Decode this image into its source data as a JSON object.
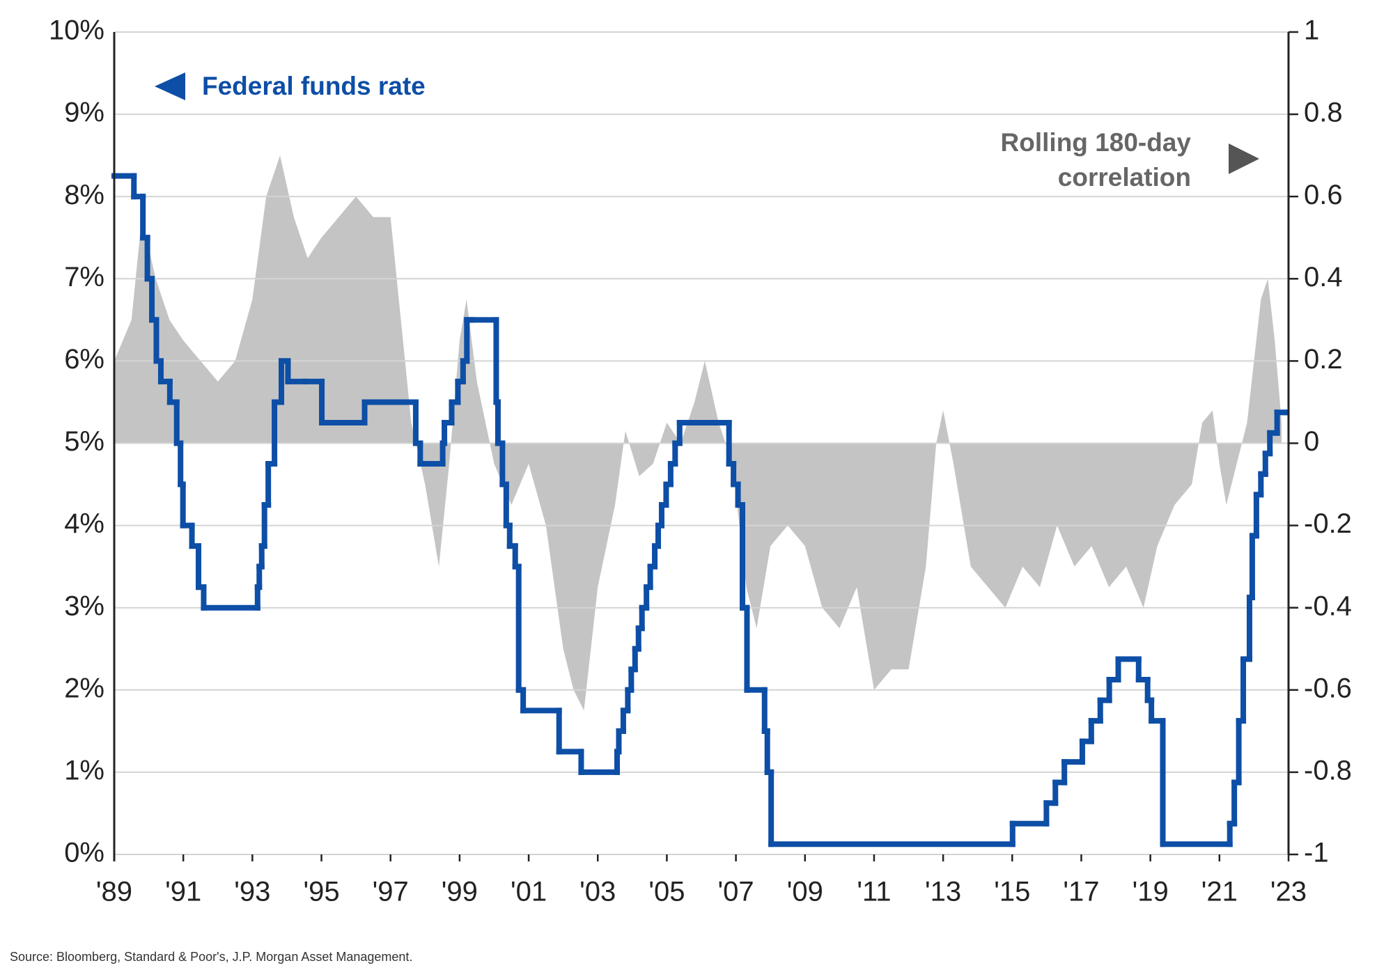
{
  "chart_data": {
    "type": "line",
    "source": "Source: Bloomberg, Standard & Poor's, J.P. Morgan Asset Management.",
    "xlim": [
      1989,
      2023
    ],
    "xticks": [
      {
        "value": 1989,
        "label": "'89"
      },
      {
        "value": 1991,
        "label": "'91"
      },
      {
        "value": 1993,
        "label": "'93"
      },
      {
        "value": 1995,
        "label": "'95"
      },
      {
        "value": 1997,
        "label": "'97"
      },
      {
        "value": 1999,
        "label": "'99"
      },
      {
        "value": 2001,
        "label": "'01"
      },
      {
        "value": 2003,
        "label": "'03"
      },
      {
        "value": 2005,
        "label": "'05"
      },
      {
        "value": 2007,
        "label": "'07"
      },
      {
        "value": 2009,
        "label": "'09"
      },
      {
        "value": 2011,
        "label": "'11"
      },
      {
        "value": 2013,
        "label": "'13"
      },
      {
        "value": 2015,
        "label": "'15"
      },
      {
        "value": 2017,
        "label": "'17"
      },
      {
        "value": 2019,
        "label": "'19"
      },
      {
        "value": 2021,
        "label": "'21"
      },
      {
        "value": 2023,
        "label": "'23"
      }
    ],
    "ylim": [
      0,
      10
    ],
    "yticks": [
      {
        "value": 0,
        "label": "0%"
      },
      {
        "value": 1,
        "label": "1%"
      },
      {
        "value": 2,
        "label": "2%"
      },
      {
        "value": 3,
        "label": "3%"
      },
      {
        "value": 4,
        "label": "4%"
      },
      {
        "value": 5,
        "label": "5%"
      },
      {
        "value": 6,
        "label": "6%"
      },
      {
        "value": 7,
        "label": "7%"
      },
      {
        "value": 8,
        "label": "8%"
      },
      {
        "value": 9,
        "label": "9%"
      },
      {
        "value": 10,
        "label": "10%"
      }
    ],
    "y2lim": [
      -1,
      1
    ],
    "y2ticks": [
      -1,
      -0.8,
      -0.6,
      -0.4,
      -0.2,
      0,
      0.2,
      0.4,
      0.6,
      0.8,
      1
    ],
    "grid": true,
    "series": [
      {
        "name": "Federal funds rate",
        "style": "step",
        "color": "#0d4ea6",
        "x": [
          1989.0,
          1989.57,
          1989.83,
          1989.96,
          1990.09,
          1990.22,
          1990.35,
          1990.61,
          1990.81,
          1990.92,
          1990.99,
          1991.25,
          1991.44,
          1991.59,
          1993.15,
          1993.2,
          1993.27,
          1993.35,
          1993.46,
          1993.64,
          1993.84,
          1994.03,
          1994.54,
          1995.01,
          1996.25,
          1997.73,
          1997.86,
          1998.51,
          1998.56,
          1998.77,
          1998.95,
          1999.1,
          1999.21,
          1999.36,
          2000.06,
          2000.11,
          2000.24,
          2000.35,
          2000.45,
          2000.61,
          2000.71,
          2000.84,
          2001.88,
          2002.52,
          2003.56,
          2003.61,
          2003.74,
          2003.87,
          2003.97,
          2004.08,
          2004.18,
          2004.28,
          2004.41,
          2004.52,
          2004.65,
          2004.75,
          2004.85,
          2004.98,
          2005.11,
          2005.24,
          2005.37,
          2005.5,
          2006.8,
          2006.93,
          2007.06,
          2007.19,
          2007.32,
          2007.83,
          2007.91,
          2008.02,
          2015.01,
          2015.99,
          2016.25,
          2016.51,
          2017.03,
          2017.29,
          2017.55,
          2017.81,
          2018.07,
          2018.66,
          2018.92,
          2019.03,
          2019.36,
          2021.3,
          2021.43,
          2021.56,
          2021.69,
          2021.87,
          2021.95,
          2022.07,
          2022.2,
          2022.33,
          2022.46,
          2022.67,
          2022.9
        ],
        "values": [
          8.25,
          8.0,
          7.5,
          7.0,
          6.5,
          6.0,
          5.75,
          5.5,
          5.0,
          4.5,
          4.0,
          3.75,
          3.25,
          3.0,
          3.25,
          3.5,
          3.75,
          4.25,
          4.75,
          5.5,
          6.0,
          5.75,
          5.75,
          5.25,
          5.5,
          5.0,
          4.75,
          5.0,
          5.25,
          5.5,
          5.75,
          6.0,
          6.5,
          6.5,
          5.5,
          5.0,
          4.5,
          4.0,
          3.75,
          3.5,
          2.0,
          1.75,
          1.25,
          1.0,
          1.25,
          1.5,
          1.75,
          2.0,
          2.25,
          2.5,
          2.75,
          3.0,
          3.25,
          3.5,
          3.75,
          4.0,
          4.25,
          4.5,
          4.75,
          5.0,
          5.25,
          5.25,
          4.75,
          4.5,
          4.25,
          3.0,
          2.0,
          1.5,
          1.0,
          0.125,
          0.375,
          0.625,
          0.875,
          1.125,
          1.375,
          1.625,
          1.875,
          2.125,
          2.375,
          2.125,
          1.875,
          1.625,
          0.125,
          0.375,
          0.875,
          1.625,
          2.375,
          3.125,
          3.875,
          4.375,
          4.625,
          4.875,
          5.125,
          5.375,
          5.375
        ]
      },
      {
        "name": "Rolling 180-day correlation",
        "style": "area",
        "axis": "y2",
        "color": "#c4c4c4",
        "x": [
          1989.0,
          1989.5,
          1989.8,
          1990.2,
          1990.6,
          1991.0,
          1991.5,
          1992.0,
          1992.5,
          1993.0,
          1993.4,
          1993.8,
          1994.2,
          1994.6,
          1995.0,
          1995.5,
          1996.0,
          1996.5,
          1997.0,
          1997.3,
          1997.6,
          1998.0,
          1998.4,
          1998.7,
          1999.0,
          1999.2,
          1999.5,
          2000.0,
          2000.5,
          2001.0,
          2001.5,
          2002.0,
          2002.3,
          2002.6,
          2003.0,
          2003.5,
          2003.8,
          2004.2,
          2004.6,
          2005.0,
          2005.4,
          2005.8,
          2006.1,
          2006.5,
          2006.9,
          2007.3,
          2007.6,
          2008.0,
          2008.5,
          2009.0,
          2009.5,
          2010.0,
          2010.5,
          2011.0,
          2011.5,
          2012.0,
          2012.5,
          2012.8,
          2013.0,
          2013.3,
          2013.8,
          2014.3,
          2014.8,
          2015.3,
          2015.8,
          2016.3,
          2016.8,
          2017.3,
          2017.8,
          2018.3,
          2018.8,
          2019.2,
          2019.7,
          2020.2,
          2020.5,
          2020.8,
          2021.0,
          2021.2,
          2021.5,
          2021.8,
          2022.2,
          2022.4,
          2022.6,
          2022.8
        ],
        "values": [
          0.2,
          0.3,
          0.55,
          0.4,
          0.3,
          0.25,
          0.2,
          0.15,
          0.2,
          0.35,
          0.6,
          0.7,
          0.55,
          0.45,
          0.5,
          0.55,
          0.6,
          0.55,
          0.55,
          0.3,
          0.05,
          -0.1,
          -0.3,
          -0.05,
          0.25,
          0.35,
          0.15,
          -0.05,
          -0.15,
          -0.05,
          -0.2,
          -0.5,
          -0.6,
          -0.65,
          -0.35,
          -0.15,
          0.03,
          -0.08,
          -0.05,
          0.05,
          0.0,
          0.1,
          0.2,
          0.05,
          -0.05,
          -0.35,
          -0.45,
          -0.25,
          -0.2,
          -0.25,
          -0.4,
          -0.45,
          -0.35,
          -0.6,
          -0.55,
          -0.55,
          -0.3,
          0.0,
          0.08,
          -0.05,
          -0.3,
          -0.35,
          -0.4,
          -0.3,
          -0.35,
          -0.2,
          -0.3,
          -0.25,
          -0.35,
          -0.3,
          -0.4,
          -0.25,
          -0.15,
          -0.1,
          0.05,
          0.08,
          -0.05,
          -0.15,
          -0.05,
          0.05,
          0.35,
          0.4,
          0.25,
          0.05
        ]
      }
    ]
  }
}
